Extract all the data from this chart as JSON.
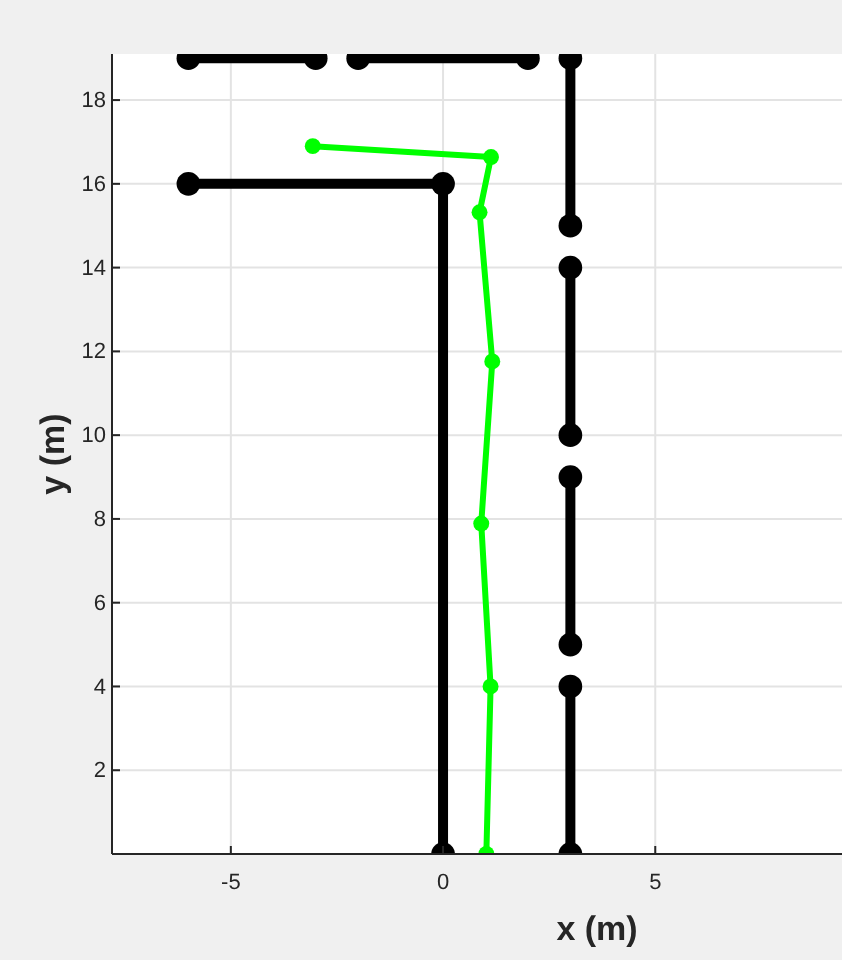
{
  "chart_data": {
    "type": "line",
    "xlabel": "x (m)",
    "ylabel": "y (m)",
    "xlim": [
      -7.8,
      9.4
    ],
    "ylim": [
      0,
      19.1
    ],
    "xticks": [
      -5,
      0,
      5
    ],
    "yticks": [
      2,
      4,
      6,
      8,
      10,
      12,
      14,
      16,
      18
    ],
    "grid": true,
    "marker": "circle",
    "line_style": "solid",
    "series": [
      {
        "color": "#000000",
        "x": [
          -6,
          -3
        ],
        "values": [
          19,
          19
        ]
      },
      {
        "color": "#000000",
        "x": [
          -2,
          2
        ],
        "values": [
          19,
          19
        ]
      },
      {
        "color": "#000000",
        "x": [
          3,
          3
        ],
        "values": [
          19,
          15
        ]
      },
      {
        "color": "#000000",
        "x": [
          3,
          3
        ],
        "values": [
          14,
          10
        ]
      },
      {
        "color": "#000000",
        "x": [
          3,
          3
        ],
        "values": [
          9,
          5
        ]
      },
      {
        "color": "#000000",
        "x": [
          3,
          3
        ],
        "values": [
          4,
          0
        ]
      },
      {
        "color": "#000000",
        "x": [
          -6,
          0,
          0
        ],
        "values": [
          16,
          16,
          0
        ]
      },
      {
        "color": "#00ff00",
        "x": [
          -3.07,
          1.13,
          0.86,
          1.16,
          0.9,
          1.12,
          1.02
        ],
        "values": [
          16.9,
          16.64,
          15.32,
          11.76,
          7.89,
          4.0,
          0
        ]
      }
    ]
  }
}
